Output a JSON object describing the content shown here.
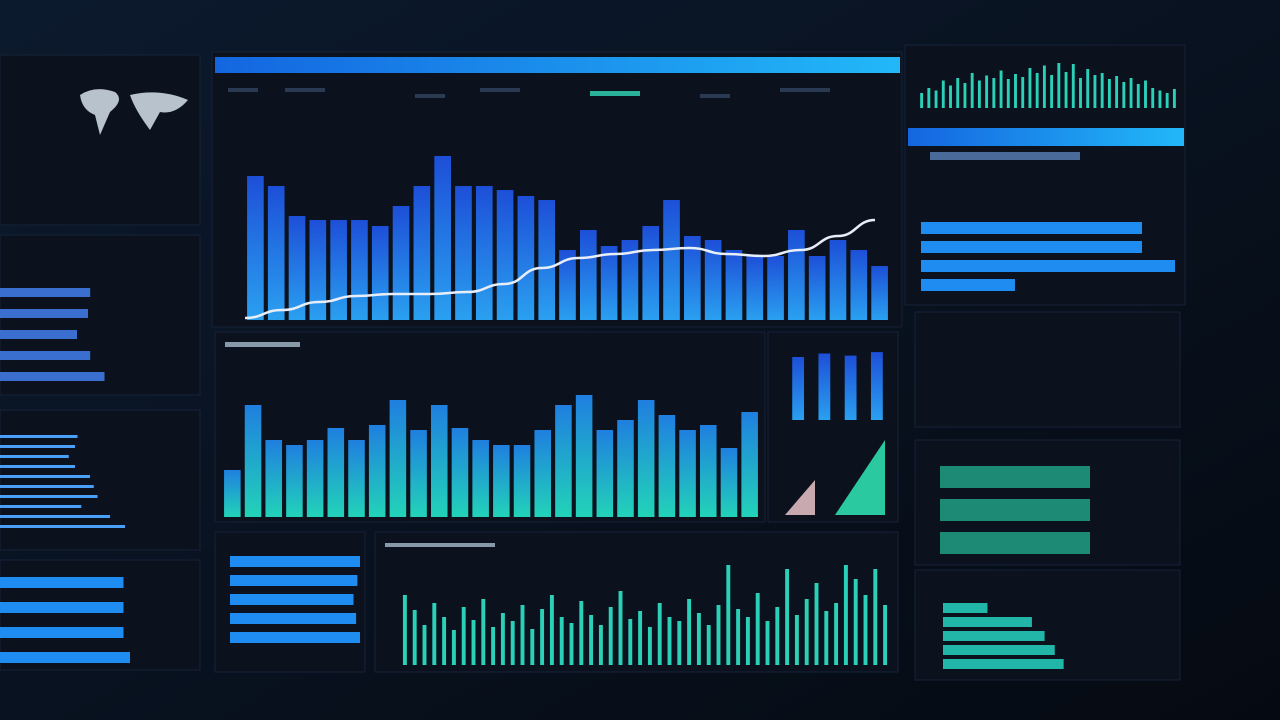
{
  "panels": [
    {
      "type": "column",
      "ylim": [
        0,
        100
      ],
      "values": [
        72,
        67,
        52,
        50,
        50,
        50,
        47,
        57,
        67,
        82,
        67,
        67,
        65,
        62,
        60,
        35,
        45,
        37,
        40,
        47,
        60,
        42,
        40,
        35,
        32,
        32,
        45,
        32,
        40,
        35,
        27
      ]
    },
    {
      "type": "line",
      "ylim": [
        0,
        100
      ],
      "values": [
        1,
        5,
        9,
        12,
        13,
        13,
        14,
        18,
        26,
        31,
        33,
        35,
        36,
        33,
        32,
        35,
        42,
        50
      ]
    },
    {
      "type": "column",
      "ylim": [
        0,
        130
      ],
      "values": [
        47,
        112,
        77,
        72,
        77,
        89,
        77,
        92,
        117,
        87,
        112,
        89,
        77,
        72,
        72,
        87,
        112,
        122,
        87,
        97,
        117,
        102,
        87,
        92,
        69,
        105
      ]
    },
    {
      "type": "spikes",
      "ylim": [
        0,
        100
      ],
      "values": [
        70,
        55,
        40,
        62,
        48,
        35,
        58,
        45,
        66,
        38,
        52,
        44,
        60,
        36,
        56,
        70,
        48,
        42,
        64,
        50,
        40,
        58,
        74,
        46,
        54,
        38,
        62,
        48,
        44,
        66,
        52,
        40,
        60,
        100,
        56,
        48,
        72,
        44,
        58,
        96,
        50,
        66,
        82,
        54,
        62,
        100,
        86,
        70,
        96,
        60
      ]
    },
    {
      "type": "spikes",
      "ylim": [
        0,
        100
      ],
      "values": [
        30,
        40,
        35,
        55,
        45,
        60,
        50,
        70,
        55,
        65,
        60,
        75,
        58,
        68,
        62,
        80,
        70,
        85,
        66,
        90,
        72,
        88,
        60,
        78,
        66,
        70,
        58,
        64,
        52,
        60,
        48,
        55,
        40,
        35,
        30,
        38
      ]
    },
    {
      "type": "hbar",
      "xlim": [
        0,
        100
      ],
      "values": [
        87,
        87,
        100,
        37
      ]
    },
    {
      "type": "column",
      "ylim": [
        0,
        100
      ],
      "values": [
        90,
        95,
        92,
        97
      ]
    },
    {
      "type": "hbar",
      "xlim": [
        0,
        100
      ],
      "values": [
        82,
        80,
        70,
        82,
        95
      ]
    },
    {
      "type": "hbar",
      "xlim": [
        0,
        100
      ],
      "values": [
        62,
        60,
        55,
        60,
        72,
        75,
        78,
        65,
        88,
        100
      ]
    },
    {
      "type": "hbar",
      "xlim": [
        0,
        100
      ],
      "values": [
        95,
        95,
        95,
        100
      ]
    },
    {
      "type": "hbar",
      "xlim": [
        0,
        100
      ],
      "values": [
        100,
        98,
        95,
        97,
        100
      ]
    },
    {
      "type": "hbar",
      "xlim": [
        0,
        100
      ],
      "values": [
        100,
        100,
        100
      ]
    },
    {
      "type": "hbar",
      "xlim": [
        0,
        100
      ],
      "values": [
        35,
        70,
        80,
        88,
        95
      ]
    }
  ]
}
